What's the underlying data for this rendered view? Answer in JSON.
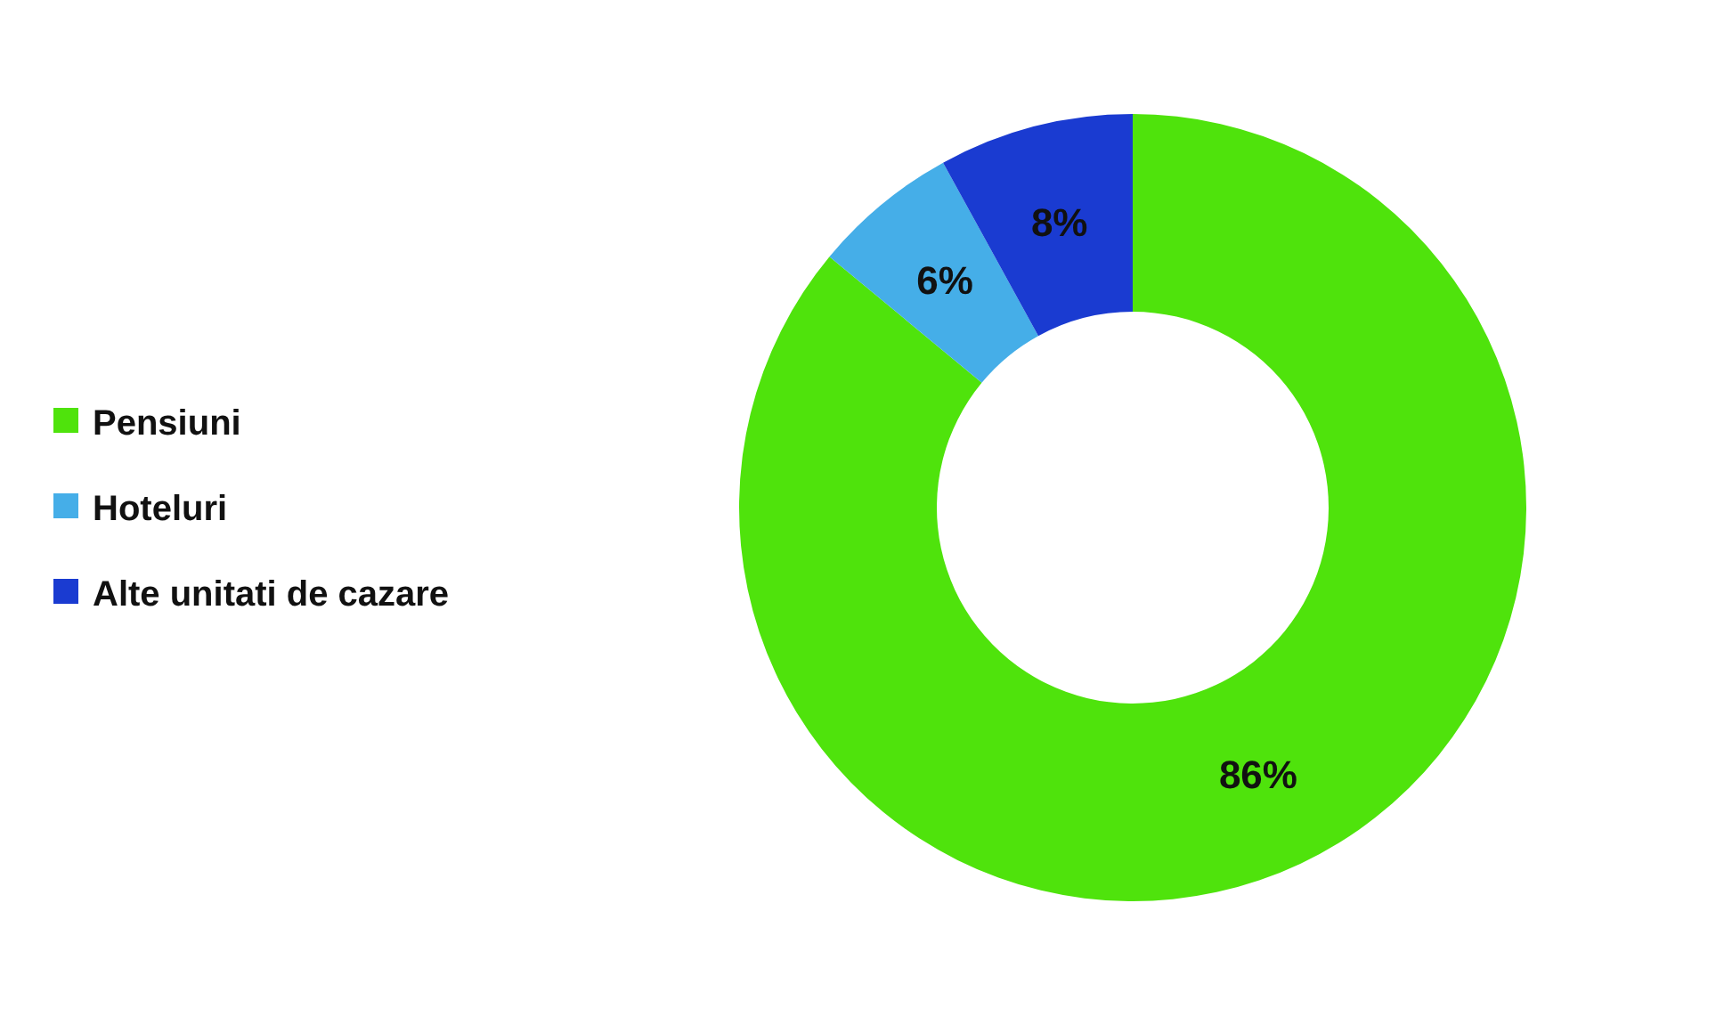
{
  "chart_data": {
    "type": "donut",
    "categories": [
      "Pensiuni",
      "Hoteluri",
      "Alte unitati de cazare"
    ],
    "values": [
      86,
      6,
      8
    ],
    "value_labels": [
      "86%",
      "6%",
      "8%"
    ],
    "colors": [
      "#4fe30c",
      "#45aee8",
      "#1a3bd1"
    ],
    "legend": "left"
  }
}
